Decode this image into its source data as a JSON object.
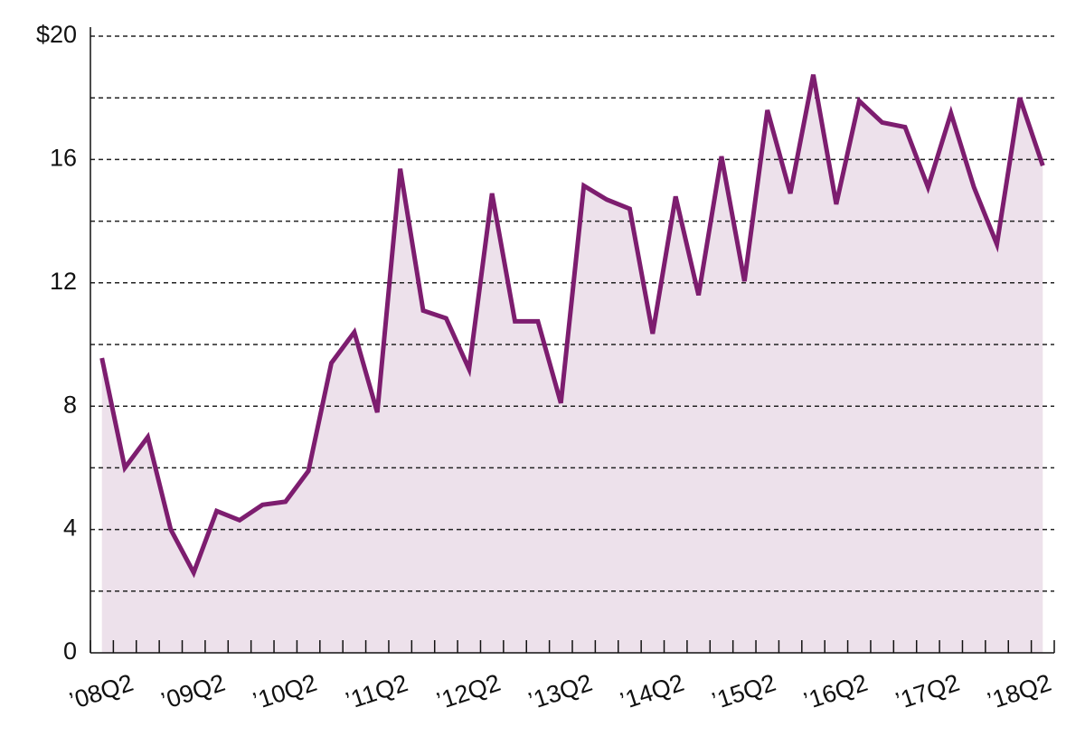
{
  "chart_data": {
    "type": "area-line",
    "categories": [
      "’08Q2",
      null,
      null,
      null,
      "’09Q2",
      null,
      null,
      null,
      "’10Q2",
      null,
      null,
      null,
      "’11Q2",
      null,
      null,
      null,
      "’12Q2",
      null,
      null,
      null,
      "’13Q2",
      null,
      null,
      null,
      "’14Q2",
      null,
      null,
      null,
      "’15Q2",
      null,
      null,
      null,
      "’16Q2",
      null,
      null,
      null,
      "’17Q2",
      null,
      null,
      null,
      "’18Q2",
      null
    ],
    "values": [
      9.56,
      6.0,
      7.0,
      4.0,
      2.6,
      4.6,
      4.3,
      4.8,
      4.9,
      5.9,
      9.4,
      10.4,
      7.8,
      15.7,
      11.1,
      10.85,
      9.2,
      14.9,
      10.75,
      10.75,
      8.1,
      15.15,
      14.7,
      14.4,
      10.35,
      14.8,
      11.6,
      16.1,
      12.05,
      17.6,
      14.9,
      18.75,
      14.55,
      17.9,
      17.2,
      17.05,
      15.1,
      17.5,
      15.1,
      13.25,
      18.0,
      15.8
    ],
    "color": "#7d1d6f",
    "fill_color": "#ede1eb",
    "ylim": [
      0,
      20
    ],
    "yticks": [
      0,
      4,
      8,
      12,
      16,
      {
        "value": 20,
        "label": "$20"
      }
    ],
    "minor_yticks": [
      2,
      6,
      10,
      14,
      18
    ],
    "grid": true
  }
}
